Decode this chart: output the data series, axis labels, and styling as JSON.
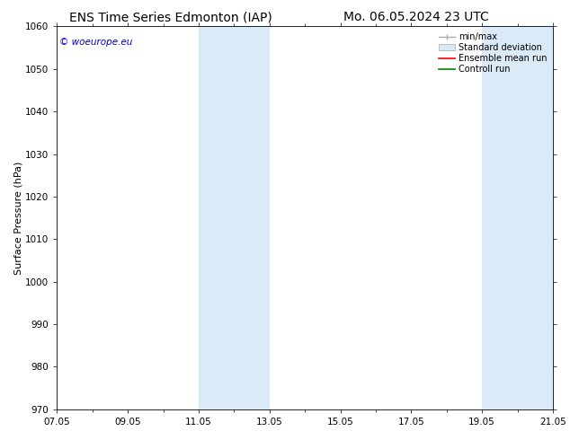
{
  "title_left": "ENS Time Series Edmonton (IAP)",
  "title_right": "Mo. 06.05.2024 23 UTC",
  "ylabel": "Surface Pressure (hPa)",
  "ylim": [
    970,
    1060
  ],
  "yticks": [
    970,
    980,
    990,
    1000,
    1010,
    1020,
    1030,
    1040,
    1050,
    1060
  ],
  "xlim_start": 0,
  "xlim_end": 14,
  "xtick_labels": [
    "07.05",
    "09.05",
    "11.05",
    "13.05",
    "15.05",
    "17.05",
    "19.05",
    "21.05"
  ],
  "xtick_positions": [
    0,
    2,
    4,
    6,
    8,
    10,
    12,
    14
  ],
  "shaded_bands": [
    {
      "xmin": 4.0,
      "xmax": 6.0
    },
    {
      "xmin": 12.0,
      "xmax": 14.0
    }
  ],
  "shade_color": "#daeaf7",
  "background_color": "#ffffff",
  "copyright_text": "© woeurope.eu",
  "legend_items": [
    "min/max",
    "Standard deviation",
    "Ensemble mean run",
    "Controll run"
  ],
  "legend_colors": [
    "#aaaaaa",
    "#cccccc",
    "#ff0000",
    "#008000"
  ],
  "title_fontsize": 10,
  "label_fontsize": 8,
  "tick_fontsize": 7.5
}
